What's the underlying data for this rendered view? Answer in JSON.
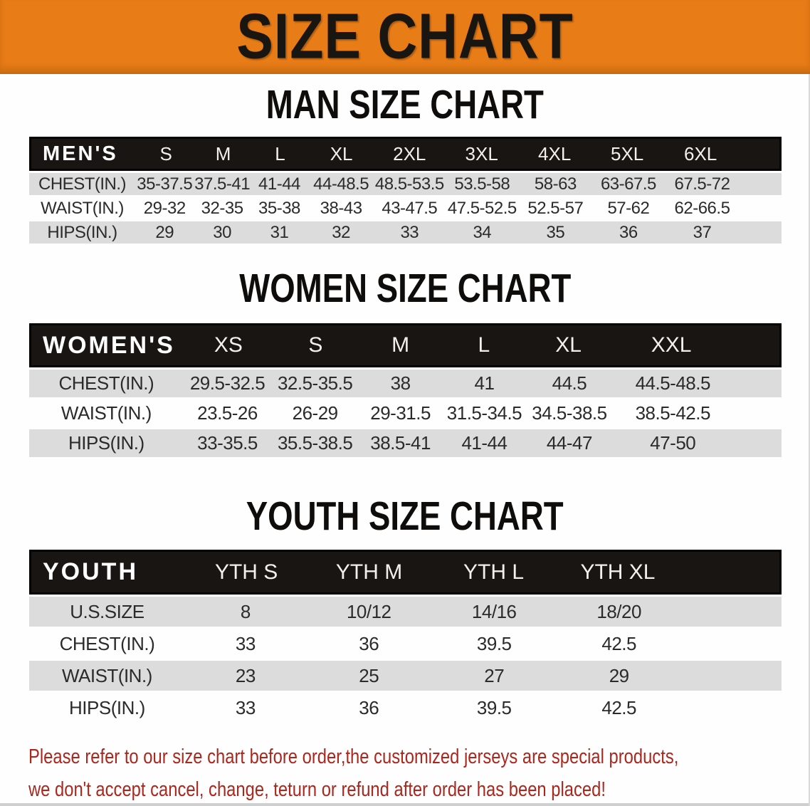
{
  "banner": {
    "title": "SIZE CHART",
    "bg_color": "#e87c17",
    "text_color": "#191511"
  },
  "sections": [
    {
      "heading": "MAN SIZE CHART",
      "table": {
        "corner_label": "MEN'S",
        "columns": [
          "S",
          "M",
          "L",
          "XL",
          "2XL",
          "3XL",
          "4XL",
          "5XL",
          "6XL"
        ],
        "rows": [
          {
            "label": "CHEST(IN.)",
            "values": [
              "35-37.5",
              "37.5-41",
              "41-44",
              "44-48.5",
              "48.5-53.5",
              "53.5-58",
              "58-63",
              "63-67.5",
              "67.5-72"
            ]
          },
          {
            "label": "WAIST(IN.)",
            "values": [
              "29-32",
              "32-35",
              "35-38",
              "38-43",
              "43-47.5",
              "47.5-52.5",
              "52.5-57",
              "57-62",
              "62-66.5"
            ]
          },
          {
            "label": "HIPS(IN.)",
            "values": [
              "29",
              "30",
              "31",
              "32",
              "33",
              "34",
              "35",
              "36",
              "37"
            ]
          }
        ]
      }
    },
    {
      "heading": "WOMEN SIZE CHART",
      "table": {
        "corner_label": "WOMEN'S",
        "columns": [
          "XS",
          "S",
          "M",
          "L",
          "XL",
          "XXL"
        ],
        "rows": [
          {
            "label": "CHEST(IN.)",
            "values": [
              "29.5-32.5",
              "32.5-35.5",
              "38",
              "41",
              "44.5",
              "44.5-48.5"
            ]
          },
          {
            "label": "WAIST(IN.)",
            "values": [
              "23.5-26",
              "26-29",
              "29-31.5",
              "31.5-34.5",
              "34.5-38.5",
              "38.5-42.5"
            ]
          },
          {
            "label": "HIPS(IN.)",
            "values": [
              "33-35.5",
              "35.5-38.5",
              "38.5-41",
              "41-44",
              "44-47",
              "47-50"
            ]
          }
        ]
      }
    },
    {
      "heading": "YOUTH SIZE CHART",
      "table": {
        "corner_label": "YOUTH",
        "columns": [
          "YTH S",
          "YTH M",
          "YTH L",
          "YTH XL"
        ],
        "rows": [
          {
            "label": "U.S.SIZE",
            "values": [
              "8",
              "10/12",
              "14/16",
              "18/20"
            ]
          },
          {
            "label": "CHEST(IN.)",
            "values": [
              "33",
              "36",
              "39.5",
              "42.5"
            ]
          },
          {
            "label": "WAIST(IN.)",
            "values": [
              "23",
              "25",
              "27",
              "29"
            ]
          },
          {
            "label": "HIPS(IN.)",
            "values": [
              "33",
              "36",
              "39.5",
              "42.5"
            ]
          }
        ]
      }
    }
  ],
  "note": {
    "color": "#ab271d",
    "lines": [
      "Please refer to our size chart before order,the customized jerseys are special products,",
      "we don't accept cancel, change, teturn or refund after order has been placed!"
    ]
  },
  "chart_data": [
    {
      "type": "table",
      "title": "MAN SIZE CHART",
      "columns": [
        "MEN'S",
        "S",
        "M",
        "L",
        "XL",
        "2XL",
        "3XL",
        "4XL",
        "5XL",
        "6XL"
      ],
      "rows": [
        [
          "CHEST(IN.)",
          "35-37.5",
          "37.5-41",
          "41-44",
          "44-48.5",
          "48.5-53.5",
          "53.5-58",
          "58-63",
          "63-67.5",
          "67.5-72"
        ],
        [
          "WAIST(IN.)",
          "29-32",
          "32-35",
          "35-38",
          "38-43",
          "43-47.5",
          "47.5-52.5",
          "52.5-57",
          "57-62",
          "62-66.5"
        ],
        [
          "HIPS(IN.)",
          "29",
          "30",
          "31",
          "32",
          "33",
          "34",
          "35",
          "36",
          "37"
        ]
      ]
    },
    {
      "type": "table",
      "title": "WOMEN SIZE CHART",
      "columns": [
        "WOMEN'S",
        "XS",
        "S",
        "M",
        "L",
        "XL",
        "XXL"
      ],
      "rows": [
        [
          "CHEST(IN.)",
          "29.5-32.5",
          "32.5-35.5",
          "38",
          "41",
          "44.5",
          "44.5-48.5"
        ],
        [
          "WAIST(IN.)",
          "23.5-26",
          "26-29",
          "29-31.5",
          "31.5-34.5",
          "34.5-38.5",
          "38.5-42.5"
        ],
        [
          "HIPS(IN.)",
          "33-35.5",
          "35.5-38.5",
          "38.5-41",
          "41-44",
          "44-47",
          "47-50"
        ]
      ]
    },
    {
      "type": "table",
      "title": "YOUTH SIZE CHART",
      "columns": [
        "YOUTH",
        "YTH S",
        "YTH M",
        "YTH L",
        "YTH XL"
      ],
      "rows": [
        [
          "U.S.SIZE",
          "8",
          "10/12",
          "14/16",
          "18/20"
        ],
        [
          "CHEST(IN.)",
          "33",
          "36",
          "39.5",
          "42.5"
        ],
        [
          "WAIST(IN.)",
          "23",
          "25",
          "27",
          "29"
        ],
        [
          "HIPS(IN.)",
          "33",
          "36",
          "39.5",
          "42.5"
        ]
      ]
    }
  ]
}
